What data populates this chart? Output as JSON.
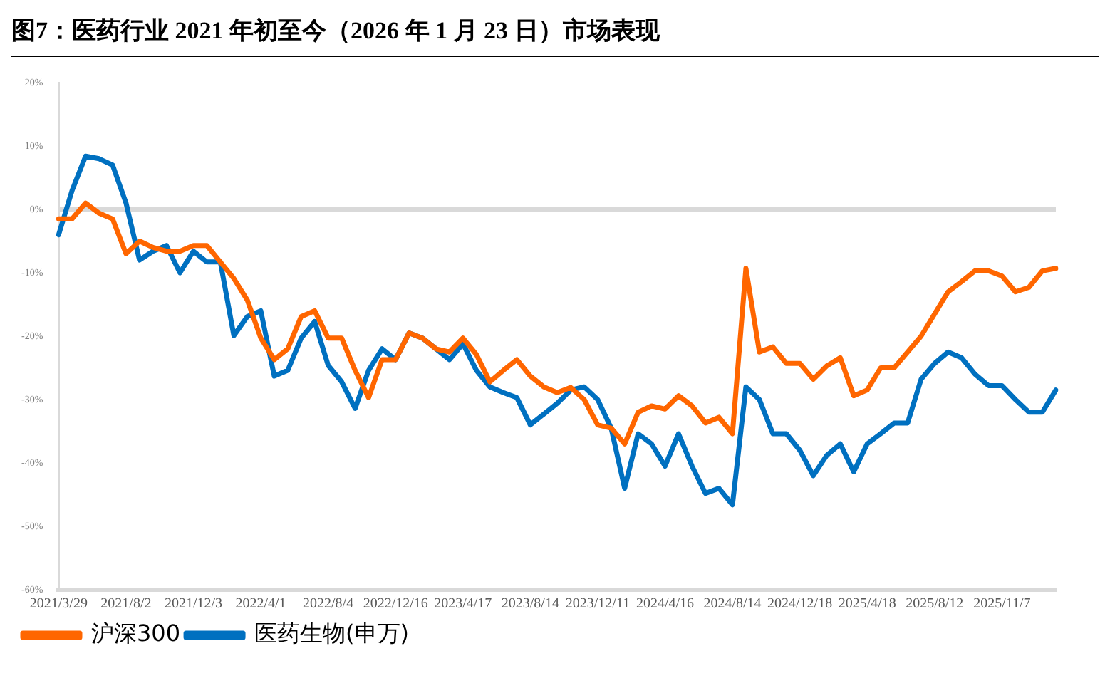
{
  "chart_data": {
    "type": "line",
    "title": "图7：医药行业 2021 年初至今（2026 年 1 月 23 日）市场表现",
    "categories": [
      "2021/3/29",
      null,
      null,
      null,
      null,
      "2021/8/2",
      null,
      null,
      null,
      null,
      "2021/12/3",
      null,
      null,
      null,
      null,
      "2022/4/1",
      null,
      null,
      null,
      null,
      "2022/8/4",
      null,
      null,
      null,
      null,
      "2022/12/16",
      null,
      null,
      null,
      null,
      "2023/4/17",
      null,
      null,
      null,
      null,
      "2023/8/14",
      null,
      null,
      null,
      null,
      "2023/12/11",
      null,
      null,
      null,
      null,
      "2024/4/16",
      null,
      null,
      null,
      null,
      "2024/8/14",
      null,
      null,
      null,
      null,
      "2024/12/18",
      null,
      null,
      null,
      null,
      "2025/4/18",
      null,
      null,
      null,
      null,
      "2025/8/12",
      null,
      null,
      null,
      null,
      "2025/11/7",
      null,
      null,
      null,
      null
    ],
    "series": [
      {
        "name": "沪深300",
        "color": "#ff6600",
        "values": [
          -1.5,
          -1.5,
          1,
          -0.6,
          -1.5,
          -7,
          -5,
          -6,
          -6.6,
          -6.6,
          -5.7,
          -5.7,
          -8.3,
          -10.9,
          -14.3,
          -20.3,
          -23.7,
          -22,
          -16.9,
          -16,
          -20.3,
          -20.3,
          -25.4,
          -29.7,
          -23.7,
          -23.7,
          -19.5,
          -20.3,
          -22,
          -22.5,
          -20.3,
          -22.9,
          -27.2,
          -25.4,
          -23.7,
          -26.3,
          -28,
          -28.9,
          -28.1,
          -30,
          -34,
          -34.5,
          -37,
          -32,
          -31,
          -31.5,
          -29.4,
          -31,
          -33.7,
          -32.8,
          -35.4,
          -9.3,
          -22.5,
          -21.7,
          -24.3,
          -24.3,
          -26.8,
          -24.7,
          -23.4,
          -29.4,
          -28.5,
          -25,
          -25,
          -22.5,
          -20,
          -16.5,
          -13,
          -11.4,
          -9.7,
          -9.7,
          -10.5,
          -13,
          -12.3,
          -9.7,
          -9.3
        ]
      },
      {
        "name": "医药生物(申万)",
        "color": "#0070c0",
        "values": [
          -4,
          3,
          8.4,
          8,
          7,
          1,
          -8,
          -6.6,
          -5.7,
          -10,
          -6.6,
          -8.3,
          -8.3,
          -19.9,
          -16.9,
          -16,
          -26.3,
          -25.4,
          -20.3,
          -17.7,
          -24.6,
          -27.2,
          -31.4,
          -25.4,
          -22,
          -23.7,
          -19.5,
          -20.3,
          -22,
          -23.7,
          -21.2,
          -25.4,
          -28,
          -28.9,
          -29.7,
          -34,
          -32.3,
          -30.6,
          -28.5,
          -28,
          -30,
          -34.5,
          -44,
          -35.4,
          -37,
          -40.5,
          -35.4,
          -40.5,
          -44.8,
          -44,
          -46.6,
          -28,
          -30,
          -35.4,
          -35.4,
          -38,
          -42,
          -38.8,
          -37,
          -41.4,
          -37,
          -35.4,
          -33.7,
          -33.7,
          -26.8,
          -24.3,
          -22.5,
          -23.4,
          -26,
          -27.8,
          -27.8,
          -30,
          -32,
          -32,
          -28.5
        ]
      }
    ],
    "ylim": [
      -60,
      20
    ],
    "yticks": [
      {
        "value": -60,
        "label": "-60%"
      },
      {
        "value": -50,
        "label": "-50%"
      },
      {
        "value": -40,
        "label": "-40%"
      },
      {
        "value": -30,
        "label": "-30%"
      },
      {
        "value": -20,
        "label": "-20%"
      },
      {
        "value": -10,
        "label": "-10%"
      },
      {
        "value": 0,
        "label": "0%"
      },
      {
        "value": 10,
        "label": "10%"
      },
      {
        "value": 20,
        "label": "20%"
      }
    ],
    "ref_lines": [
      {
        "axis": "y",
        "value": 0,
        "color": "#d9d9d9"
      }
    ],
    "grid": false,
    "legend": "bottom",
    "marker": "none",
    "line_style": "solid"
  }
}
